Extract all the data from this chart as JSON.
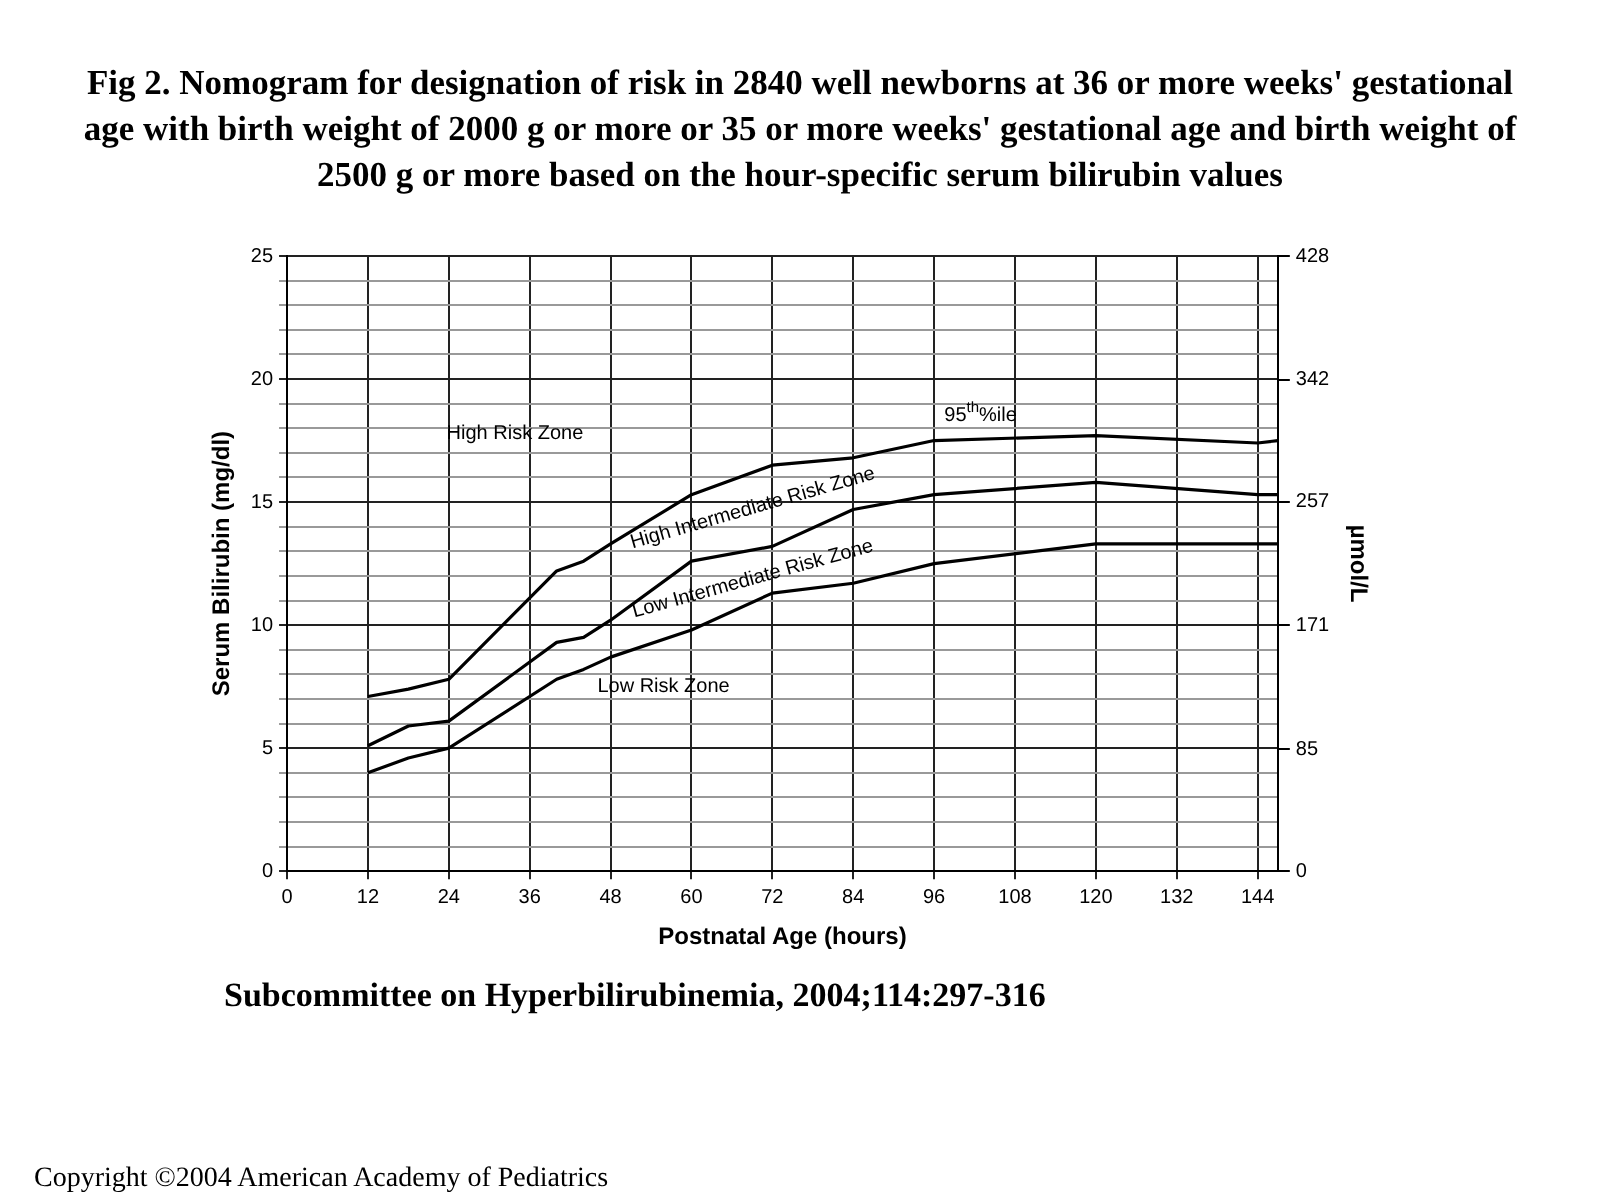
{
  "chart_data": {
    "type": "line",
    "title": "Fig 2. Nomogram for designation of risk in 2840 well newborns at 36 or more weeks' gestational age with birth weight of 2000 g or more or 35 or more weeks' gestational age and birth weight of 2500 g or more based on the hour-specific serum bilirubin values",
    "xlabel": "Postnatal Age (hours)",
    "ylabel": "Serum Bilirubin (mg/dl)",
    "y2label": "µmol/L",
    "x": [
      12,
      18,
      24,
      40,
      44,
      48,
      60,
      72,
      84,
      96,
      120,
      144,
      147
    ],
    "series": [
      {
        "color": "#000000",
        "values": [
          7.1,
          7.4,
          7.8,
          12.2,
          12.6,
          13.3,
          15.3,
          16.5,
          16.8,
          17.5,
          17.7,
          17.4,
          17.5
        ]
      },
      {
        "color": "#000000",
        "values": [
          5.1,
          5.9,
          6.1,
          9.3,
          9.5,
          10.2,
          12.6,
          13.2,
          14.7,
          15.3,
          15.8,
          15.3,
          15.3
        ]
      },
      {
        "color": "#000000",
        "values": [
          4.0,
          4.6,
          5.0,
          7.8,
          8.2,
          8.7,
          9.8,
          11.3,
          11.7,
          12.5,
          13.3,
          13.3,
          13.3
        ]
      }
    ],
    "xlim": [
      0,
      147
    ],
    "xticks": [
      0,
      12,
      24,
      36,
      48,
      60,
      72,
      84,
      96,
      108,
      120,
      132,
      144
    ],
    "ylim": [
      0,
      25
    ],
    "yticks": [
      0,
      {
        "value": 1,
        "label": null
      },
      {
        "value": 2,
        "label": null
      },
      {
        "value": 3,
        "label": null
      },
      {
        "value": 4,
        "label": null
      },
      5,
      {
        "value": 6,
        "label": null
      },
      {
        "value": 7,
        "label": null
      },
      {
        "value": 8,
        "label": null
      },
      {
        "value": 9,
        "label": null
      },
      10,
      {
        "value": 11,
        "label": null
      },
      {
        "value": 12,
        "label": null
      },
      {
        "value": 13,
        "label": null
      },
      {
        "value": 14,
        "label": null
      },
      15,
      {
        "value": 16,
        "label": null
      },
      {
        "value": 17,
        "label": null
      },
      {
        "value": 18,
        "label": null
      },
      {
        "value": 19,
        "label": null
      },
      20,
      {
        "value": 21,
        "label": null
      },
      {
        "value": 22,
        "label": null
      },
      {
        "value": 23,
        "label": null
      },
      {
        "value": 24,
        "label": null
      },
      25
    ],
    "y2lim": [
      0,
      428
    ],
    "y2ticks": [
      0,
      85,
      171,
      257,
      342,
      428
    ],
    "grid": true,
    "legend": false,
    "marker": "none",
    "line_style": "solid",
    "annotations": [
      "High Risk Zone",
      "High Intermediate Risk Zone",
      "Low Intermediate Risk Zone",
      "Low Risk Zone",
      "95$^{th}$%ile",
      "Subcommittee on Hyperbilirubinemia, 2004;114:297-316",
      "Copyright ©2004 American Academy of Pediatrics"
    ]
  }
}
